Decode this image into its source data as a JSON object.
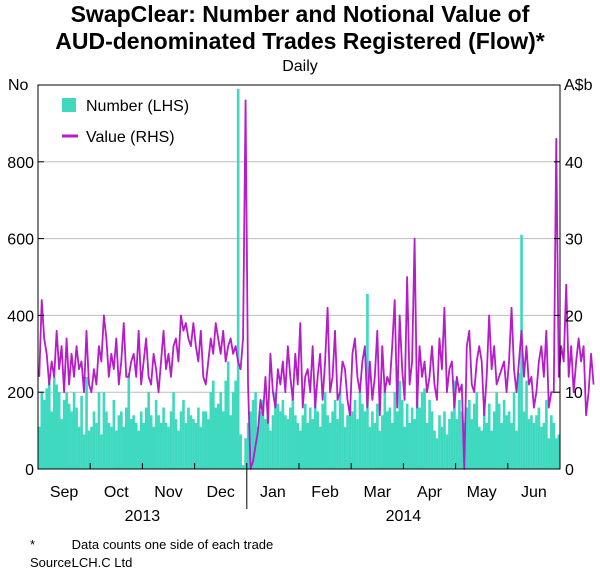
{
  "title_line1": "SwapClear: Number and Notional Value of",
  "title_line2": "AUD-denominated Trades Registered (Flow)*",
  "subtitle": "Daily",
  "footnotes": [
    {
      "key": "*",
      "text": "Data counts one side of each trade"
    },
    {
      "key": "Source:",
      "text": "LCH.C Ltd"
    }
  ],
  "chart_data": {
    "type": "bar+line",
    "left_axis": {
      "unit": "No",
      "range": [
        0,
        1000
      ],
      "ticks": [
        0,
        200,
        400,
        600,
        800
      ]
    },
    "right_axis": {
      "unit": "A$b",
      "range": [
        0,
        50
      ],
      "ticks": [
        0,
        10,
        20,
        30,
        40
      ]
    },
    "x_axis": {
      "months": [
        "Sep",
        "Oct",
        "Nov",
        "Dec",
        "Jan",
        "Feb",
        "Mar",
        "Apr",
        "May",
        "Jun"
      ],
      "years": [
        {
          "label": "2013",
          "months_span": [
            0,
            3
          ]
        },
        {
          "label": "2014",
          "months_span": [
            4,
            9
          ]
        }
      ],
      "days_per_month": 21
    },
    "legend": {
      "placement": "top-left"
    },
    "grid": true,
    "colors": {
      "number": "#3fd9c0",
      "value": "#b61cc9",
      "grid": "#bdbdbd"
    },
    "series": [
      {
        "name": "Number (LHS)",
        "axis": "left",
        "kind": "bar",
        "values": [
          110,
          200,
          180,
          210,
          230,
          150,
          240,
          220,
          200,
          130,
          180,
          200,
          170,
          150,
          200,
          160,
          110,
          190,
          90,
          240,
          100,
          110,
          150,
          120,
          200,
          90,
          200,
          150,
          120,
          110,
          180,
          100,
          140,
          150,
          110,
          160,
          250,
          130,
          140,
          120,
          100,
          150,
          120,
          160,
          200,
          140,
          110,
          180,
          140,
          120,
          160,
          120,
          110,
          150,
          200,
          130,
          100,
          150,
          180,
          120,
          160,
          140,
          130,
          120,
          160,
          110,
          150,
          150,
          130,
          200,
          230,
          160,
          170,
          200,
          150,
          230,
          280,
          140,
          200,
          230,
          990,
          90,
          10,
          80,
          120,
          150,
          180,
          200,
          110,
          150,
          180,
          130,
          160,
          100,
          140,
          200,
          170,
          150,
          180,
          140,
          130,
          160,
          200,
          140,
          120,
          100,
          140,
          170,
          120,
          160,
          130,
          210,
          150,
          110,
          170,
          200,
          140,
          120,
          150,
          180,
          130,
          200,
          170,
          110,
          140,
          160,
          150,
          180,
          130,
          200,
          170,
          150,
          456,
          110,
          150,
          120,
          170,
          100,
          140,
          210,
          150,
          160,
          120,
          200,
          150,
          230,
          180,
          110,
          170,
          120,
          160,
          130,
          200,
          160,
          200,
          210,
          120,
          180,
          150,
          100,
          80,
          140,
          110,
          150,
          90,
          130,
          150,
          230,
          130,
          180,
          150,
          120,
          160,
          180,
          130,
          170,
          200,
          110,
          100,
          150,
          120,
          170,
          100,
          150,
          200,
          170,
          120,
          180,
          140,
          150,
          120,
          200,
          100,
          250,
          610,
          150,
          230,
          130,
          140,
          120,
          140,
          160,
          110,
          120,
          180,
          80,
          140,
          120,
          80,
          90
        ]
      },
      {
        "name": "Value (RHS)",
        "axis": "right",
        "kind": "line",
        "values": [
          12,
          22,
          17,
          15,
          11,
          14,
          12,
          18,
          13,
          16,
          10,
          17,
          11,
          15,
          12,
          16,
          13,
          14,
          10,
          18,
          11,
          10,
          13,
          11,
          16,
          14,
          20,
          17,
          12,
          15,
          13,
          17,
          11,
          14,
          19,
          12,
          12,
          14,
          15,
          12,
          18,
          11,
          14,
          17,
          12,
          11,
          15,
          13,
          10,
          14,
          18,
          13,
          15,
          12,
          16,
          17,
          14,
          20,
          18,
          19,
          17,
          16,
          19,
          16,
          14,
          18,
          12,
          11,
          14,
          17,
          15,
          19,
          17,
          15,
          18,
          14,
          16,
          17,
          15,
          16,
          14,
          13,
          17,
          48,
          11,
          0,
          1,
          3,
          5,
          9,
          7,
          12,
          6,
          15,
          10,
          8,
          13,
          11,
          14,
          10,
          16,
          12,
          9,
          15,
          11,
          19,
          8,
          12,
          13,
          10,
          16,
          8,
          12,
          15,
          9,
          14,
          21,
          10,
          12,
          18,
          9,
          10,
          14,
          13,
          9,
          7,
          15,
          17,
          12,
          10,
          14,
          16,
          8,
          14,
          9,
          12,
          18,
          7,
          16,
          10,
          12,
          11,
          16,
          22,
          8,
          20,
          13,
          9,
          25,
          11,
          14,
          30,
          8,
          16,
          12,
          14,
          10,
          12,
          16,
          11,
          9,
          17,
          13,
          21,
          10,
          13,
          14,
          8,
          12,
          10,
          11,
          0,
          16,
          18,
          11,
          10,
          14,
          16,
          14,
          7,
          12,
          20,
          13,
          16,
          11,
          12,
          13,
          14,
          10,
          14,
          21,
          13,
          10,
          14,
          18,
          12,
          16,
          11,
          12,
          8,
          10,
          14,
          16,
          12,
          18,
          8,
          10,
          10,
          43,
          12,
          16,
          14,
          24,
          12,
          16,
          10,
          14,
          17,
          14,
          16,
          7,
          10,
          15,
          11
        ]
      }
    ]
  }
}
